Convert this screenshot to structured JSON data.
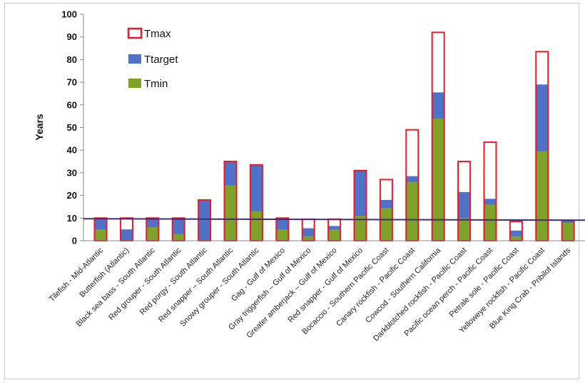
{
  "chart_data": {
    "type": "bar",
    "title": "",
    "xlabel": "",
    "ylabel": "Years",
    "ylim": [
      0,
      100
    ],
    "yticks": [
      0,
      10,
      20,
      30,
      40,
      50,
      60,
      70,
      80,
      90,
      100
    ],
    "grid": false,
    "legend_position": "top-left",
    "reference_line": 9.7,
    "categories": [
      "Tilefish - Mid-Atlantic",
      "Butterfish (Atlantic)",
      "Black sea bass - South Atlantic",
      "Red grouper - South Atlantic",
      "Red porgy - South Atlantic",
      "Red snapper – South Atlantic",
      "Snowy grouper - South Atlantic",
      "Gag - Gulf of Mexico",
      "Gray triggerfish – Gulf of Mexico",
      "Greater amberjack – Gulf of Mexico",
      "Red snapper - Gulf of Mexico",
      "Bocaccio - Southern Pacific Coast",
      "Canary rockfish - Pacific Coast",
      "Cowcod - Southern California",
      "Darkblotched rockfish - Pacific Coast",
      "Pacific ocean perch - Pacific Coast",
      "Petrale sole - Pacific Coast",
      "Yelloweye rockfish - Pacific Coast",
      "Blue King Crab - Pribilof Islands"
    ],
    "series": [
      {
        "name": "Tmax",
        "color": "#e8192c",
        "values": [
          10,
          10,
          10,
          10,
          18,
          35,
          33.5,
          10,
          9.5,
          9.5,
          31,
          27,
          49,
          92,
          35,
          43.5,
          8.5,
          83.5,
          9
        ]
      },
      {
        "name": "Ttarget",
        "color": "#4f72c9",
        "values": [
          10,
          5,
          10,
          10,
          18,
          35,
          33.5,
          10,
          5.5,
          6.5,
          31,
          18,
          28.5,
          65.5,
          21.5,
          18.5,
          4.5,
          69,
          9
        ]
      },
      {
        "name": "Tmin",
        "color": "#7fa32a",
        "values": [
          5,
          0,
          6,
          3,
          0,
          24.5,
          13,
          5,
          2,
          5,
          11,
          14.5,
          26,
          54,
          10,
          16,
          2,
          39.5,
          8
        ]
      }
    ]
  }
}
